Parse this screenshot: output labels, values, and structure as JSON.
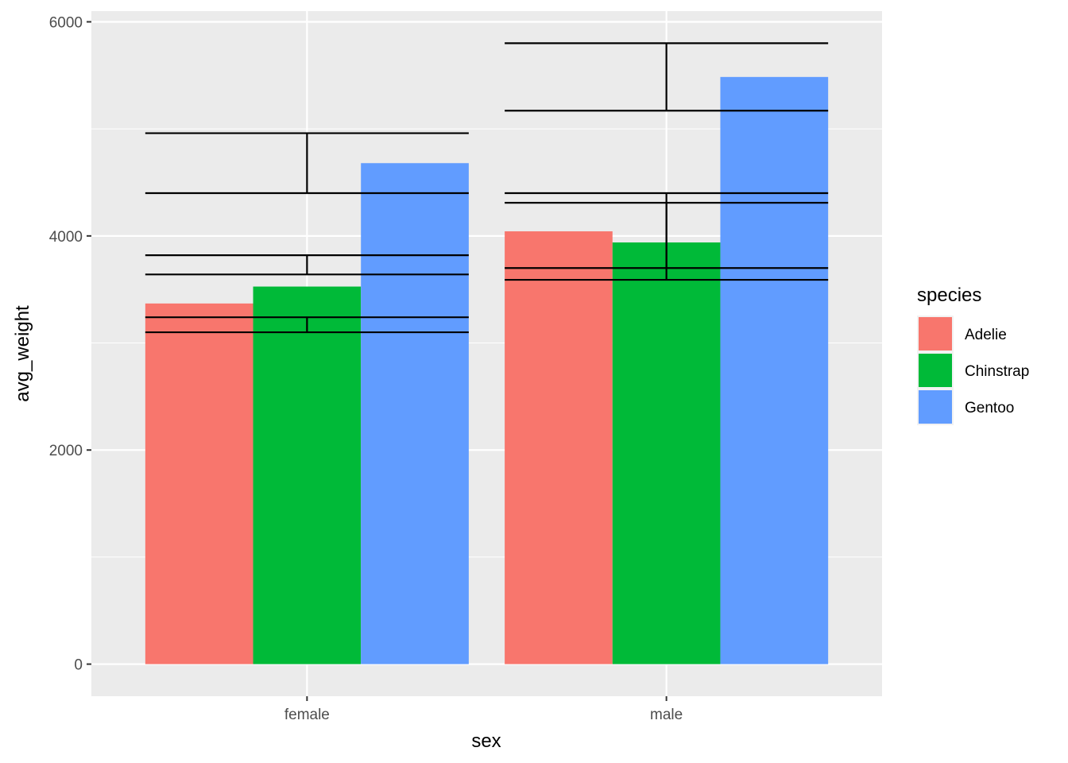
{
  "chart_data": {
    "type": "bar",
    "title": "",
    "xlabel": "sex",
    "ylabel": "avg_weight",
    "categories": [
      "female",
      "male"
    ],
    "ylim": [
      -300,
      6100
    ],
    "yticks": [
      0,
      2000,
      4000,
      6000
    ],
    "grid": true,
    "legend": {
      "title": "species",
      "position": "right"
    },
    "series": [
      {
        "name": "Adelie",
        "color": "#F8766D",
        "values": [
          3369,
          4043
        ]
      },
      {
        "name": "Chinstrap",
        "color": "#00BA38",
        "values": [
          3527,
          3939
        ]
      },
      {
        "name": "Gentoo",
        "color": "#619CFF",
        "values": [
          4680,
          5485
        ]
      }
    ],
    "errorbars": [
      {
        "category": "female",
        "intervals": [
          {
            "ymin": 3100,
            "ymax": 3240
          },
          {
            "ymin": 3640,
            "ymax": 3820
          },
          {
            "ymin": 4400,
            "ymax": 4960
          }
        ]
      },
      {
        "category": "male",
        "intervals": [
          {
            "ymin": 3590,
            "ymax": 4400
          },
          {
            "ymin": 3700,
            "ymax": 4310
          },
          {
            "ymin": 5170,
            "ymax": 5800
          }
        ]
      }
    ]
  }
}
